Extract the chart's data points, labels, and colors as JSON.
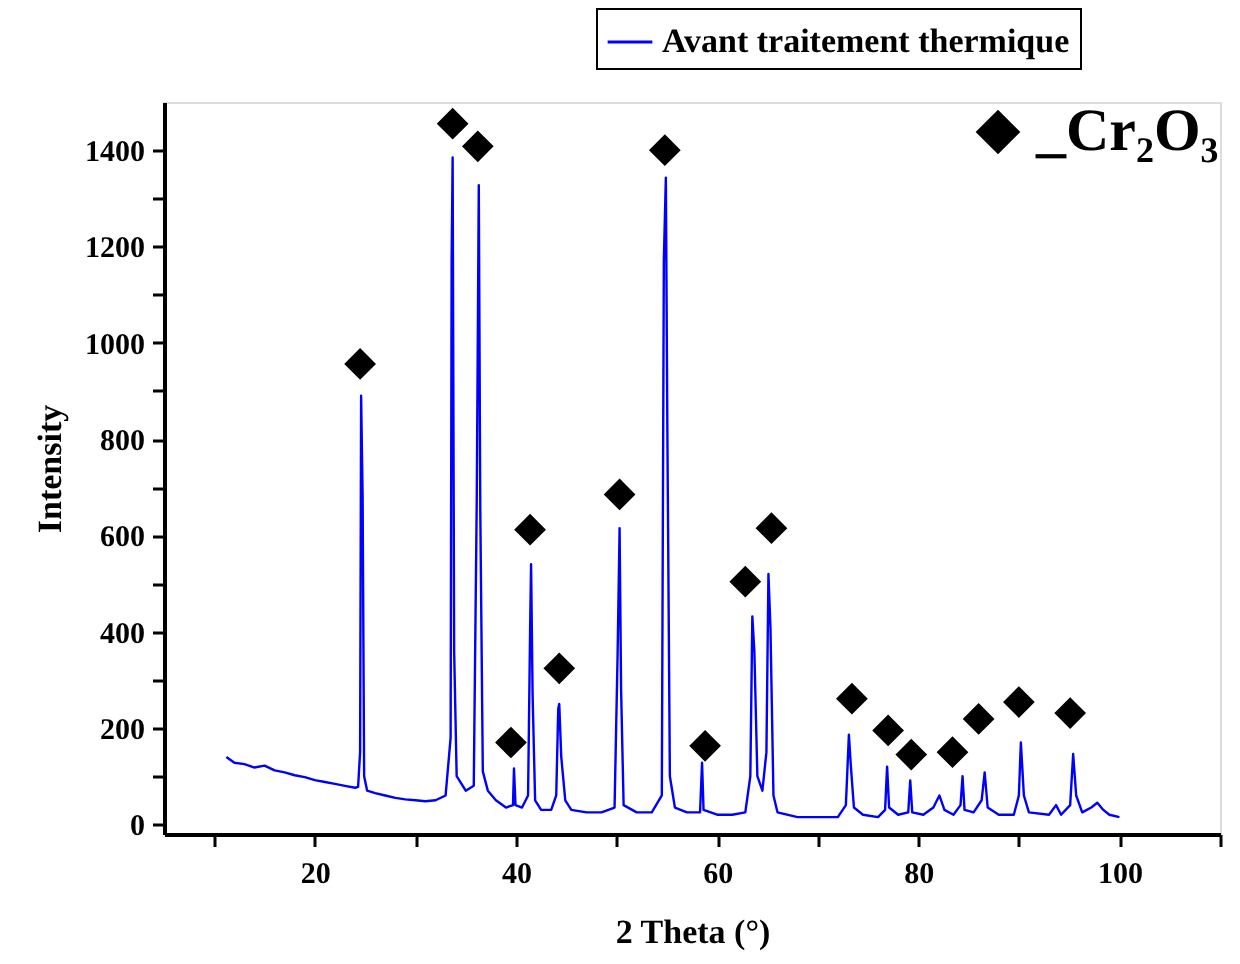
{
  "chart_data": {
    "type": "line",
    "xlabel": "2 Theta (°)",
    "ylabel": "Intensity",
    "xlim": [
      5,
      110
    ],
    "ylim": [
      -20,
      1500
    ],
    "xticks": [
      {
        "value": 10,
        "label": null
      },
      20,
      {
        "value": 30,
        "label": null
      },
      40,
      {
        "value": 50,
        "label": null
      },
      60,
      {
        "value": 70,
        "label": null
      },
      80,
      {
        "value": 90,
        "label": null
      },
      100,
      {
        "value": 110,
        "label": null
      }
    ],
    "yticks": [
      0,
      {
        "value": 100,
        "label": null
      },
      200,
      {
        "value": 300,
        "label": null
      },
      400,
      {
        "value": 500,
        "label": null
      },
      600,
      {
        "value": 700,
        "label": null
      },
      800,
      {
        "value": 900,
        "label": null
      },
      1000,
      {
        "value": 1100,
        "label": null
      },
      1200,
      {
        "value": 1300,
        "label": null
      },
      1400
    ],
    "grid": false,
    "legend": "top right",
    "series": [
      {
        "name": "Avant traitement thermique",
        "color": "#0000ff",
        "marker": "none",
        "line_style": "solid",
        "x": [
          11.2,
          12,
          13,
          14,
          15,
          16,
          17,
          18,
          19,
          20,
          21,
          22,
          23,
          24,
          24.3,
          24.5,
          24.6,
          24.75,
          24.9,
          25.2,
          26,
          27,
          28,
          29,
          30,
          31,
          32,
          33,
          33.5,
          33.6,
          33.7,
          33.85,
          34.1,
          35,
          35.8,
          36.1,
          36.3,
          36.45,
          36.7,
          37.2,
          38,
          39,
          39.7,
          39.8,
          39.95,
          40.6,
          41.2,
          41.4,
          41.5,
          41.65,
          41.9,
          42.5,
          43.5,
          44.0,
          44.2,
          44.3,
          44.5,
          44.9,
          45.5,
          47,
          48.5,
          49.8,
          50.1,
          50.3,
          50.45,
          50.7,
          52,
          53.5,
          54.5,
          54.7,
          54.9,
          55.05,
          55.3,
          55.8,
          57,
          58.3,
          58.5,
          58.65,
          60,
          61.5,
          62.8,
          63.3,
          63.5,
          63.7,
          64.0,
          64.5,
          64.9,
          65.1,
          65.3,
          65.6,
          66,
          68,
          70,
          72,
          72.8,
          73.1,
          73.3,
          73.6,
          74.5,
          76,
          76.7,
          76.9,
          77.1,
          78,
          79,
          79.2,
          79.4,
          80.5,
          81.5,
          82.1,
          82.6,
          83.5,
          84.2,
          84.4,
          84.6,
          85.5,
          86.3,
          86.6,
          86.9,
          88,
          89.5,
          90.0,
          90.2,
          90.5,
          91,
          93,
          93.7,
          94.2,
          95.1,
          95.4,
          95.7,
          96.3,
          97.2,
          97.8,
          98.4,
          99,
          100
        ],
        "values": [
          140,
          128,
          125,
          118,
          122,
          112,
          108,
          102,
          98,
          92,
          88,
          84,
          80,
          76,
          78,
          150,
          890,
          680,
          100,
          70,
          65,
          60,
          55,
          52,
          50,
          48,
          50,
          60,
          180,
          1170,
          1385,
          360,
          100,
          70,
          80,
          680,
          1327,
          650,
          110,
          70,
          50,
          35,
          40,
          116,
          40,
          35,
          60,
          400,
          540,
          270,
          50,
          30,
          30,
          60,
          240,
          250,
          140,
          50,
          30,
          25,
          25,
          35,
          350,
          615,
          280,
          40,
          25,
          25,
          60,
          1170,
          1343,
          820,
          100,
          35,
          25,
          25,
          128,
          30,
          20,
          20,
          25,
          100,
          432,
          360,
          100,
          70,
          150,
          520,
          410,
          60,
          25,
          15,
          15,
          15,
          40,
          186,
          120,
          35,
          20,
          15,
          30,
          120,
          35,
          20,
          25,
          91,
          25,
          20,
          35,
          60,
          30,
          20,
          40,
          100,
          30,
          25,
          50,
          108,
          35,
          20,
          20,
          60,
          170,
          60,
          25,
          20,
          40,
          20,
          40,
          146,
          60,
          25,
          35,
          45,
          30,
          20,
          15
        ]
      },
      {
        "name": "_Cr₂O₃",
        "type": "scatter",
        "color": "#000000",
        "marker": "diamond",
        "x": [
          24.5,
          33.7,
          36.2,
          39.5,
          41.4,
          44.3,
          50.3,
          54.8,
          58.8,
          62.8,
          65.4,
          73.4,
          77.0,
          79.3,
          83.4,
          86.0,
          90.0,
          95.1
        ],
        "values": [
          956,
          1455,
          1408,
          170,
          612,
          324,
          685,
          1400,
          163,
          504,
          615,
          261,
          195,
          145,
          150,
          219,
          254,
          231
        ]
      }
    ]
  }
}
